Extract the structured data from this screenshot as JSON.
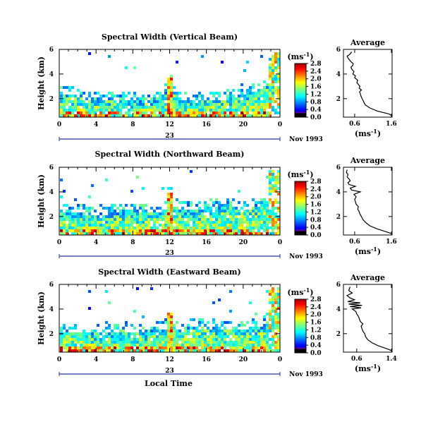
{
  "chart_data": [
    {
      "type": "heatmap",
      "title": "Spectral Width (Vertical Beam)",
      "ylabel": "Height (km)",
      "xlabel": "",
      "x_ticks": [
        "0",
        "4",
        "8",
        "12",
        "16",
        "20",
        "0"
      ],
      "y_ticks": [
        "2",
        "4",
        "6"
      ],
      "xlim": [
        0,
        24
      ],
      "ylim": [
        0.5,
        6.0
      ],
      "day_label": "23",
      "date_label": "Nov 1993",
      "colorbar": {
        "unit": "(ms",
        "unit_exp": "-1",
        "unit_close": ")",
        "ticks": [
          "0.0",
          "0.4",
          "0.8",
          "1.2",
          "1.6",
          "2.0",
          "2.4",
          "2.8"
        ]
      },
      "boundary_layer_top_km": [
        2.4,
        2.5,
        2.2,
        2.0,
        1.9,
        2.0,
        2.0,
        2.1,
        1.9,
        1.8,
        1.9,
        2.0,
        2.9,
        2.0,
        1.8,
        1.9,
        2.0,
        2.0,
        2.1,
        2.2,
        2.3,
        2.6,
        3.0,
        4.0,
        5.5
      ]
    },
    {
      "type": "heatmap",
      "title": "Spectral Width (Northward Beam)",
      "ylabel": "Height (km)",
      "xlabel": "",
      "x_ticks": [
        "0",
        "4",
        "8",
        "12",
        "16",
        "20",
        "0"
      ],
      "y_ticks": [
        "2",
        "4",
        "6"
      ],
      "xlim": [
        0,
        24
      ],
      "ylim": [
        0.5,
        6.0
      ],
      "day_label": "23",
      "date_label": "Nov 1993",
      "colorbar": {
        "unit": "(ms",
        "unit_exp": "-1",
        "unit_close": ")",
        "ticks": [
          "0.0",
          "0.4",
          "0.8",
          "1.2",
          "1.6",
          "2.0",
          "2.4",
          "2.8"
        ]
      },
      "boundary_layer_top_km": [
        2.5,
        2.4,
        2.4,
        2.3,
        2.2,
        2.3,
        2.4,
        2.4,
        2.5,
        2.4,
        2.4,
        2.5,
        3.0,
        2.7,
        2.7,
        2.6,
        2.8,
        2.9,
        3.0,
        2.8,
        2.7,
        2.8,
        3.0,
        3.8,
        5.5
      ]
    },
    {
      "type": "heatmap",
      "title": "Spectral Width (Eastward Beam)",
      "ylabel": "Height (km)",
      "xlabel": "Local Time",
      "x_ticks": [
        "0",
        "4",
        "8",
        "12",
        "16",
        "20",
        "0"
      ],
      "y_ticks": [
        "2",
        "4",
        "6"
      ],
      "xlim": [
        0,
        24
      ],
      "ylim": [
        0.5,
        6.0
      ],
      "day_label": "23",
      "date_label": "Nov 1993",
      "colorbar": {
        "unit": "(ms",
        "unit_exp": "-1",
        "unit_close": ")",
        "ticks": [
          "0.0",
          "0.4",
          "0.8",
          "1.2",
          "1.6",
          "2.0",
          "2.4",
          "2.8"
        ]
      },
      "boundary_layer_top_km": [
        2.2,
        2.3,
        2.1,
        2.2,
        2.1,
        2.2,
        2.3,
        2.4,
        2.2,
        2.1,
        2.3,
        2.4,
        2.8,
        2.4,
        2.6,
        2.7,
        2.5,
        2.6,
        2.5,
        2.5,
        2.4,
        2.6,
        2.8,
        3.6,
        5.5
      ]
    },
    {
      "type": "line",
      "title": "Average",
      "xlabel": "(ms",
      "xlabel_exp": "-1",
      "xlabel_close": ")",
      "x_ticks": [
        "0.6",
        "1.6"
      ],
      "y_ticks": [
        "2",
        "4",
        "6"
      ],
      "xlim": [
        0.3,
        1.6
      ],
      "ylim": [
        0.5,
        6.0
      ],
      "x": [
        1.6,
        1.52,
        1.2,
        1.0,
        0.88,
        0.84,
        0.8,
        0.77,
        0.75,
        0.73,
        0.78,
        0.72,
        0.74,
        0.7,
        0.66,
        0.68,
        0.6,
        0.62,
        0.55,
        0.58,
        0.52,
        0.5,
        0.55,
        0.56,
        0.5,
        0.46,
        0.42,
        0.4,
        0.47,
        0.52
      ],
      "y": [
        0.6,
        0.75,
        1.0,
        1.25,
        1.5,
        1.75,
        2.0,
        2.2,
        2.4,
        2.55,
        2.7,
        2.85,
        3.0,
        3.15,
        3.3,
        3.5,
        3.7,
        3.85,
        4.0,
        4.2,
        4.4,
        4.55,
        4.7,
        4.85,
        5.0,
        5.15,
        5.3,
        5.45,
        5.6,
        5.8
      ]
    },
    {
      "type": "line",
      "title": "Average",
      "xlabel": "(ms",
      "xlabel_exp": "-1",
      "xlabel_close": ")",
      "x_ticks": [
        "0.6",
        "1.6"
      ],
      "y_ticks": [
        "2",
        "4",
        "6"
      ],
      "xlim": [
        0.3,
        1.6
      ],
      "ylim": [
        0.5,
        6.0
      ],
      "x": [
        1.6,
        1.45,
        1.2,
        1.0,
        0.9,
        0.82,
        0.78,
        0.74,
        0.72,
        0.68,
        0.7,
        0.64,
        0.62,
        0.6,
        0.64,
        0.58,
        0.75,
        0.52,
        0.48,
        0.62,
        0.45,
        0.42,
        0.48,
        0.45,
        0.4,
        0.42,
        0.38,
        0.4
      ],
      "y": [
        0.6,
        0.75,
        1.0,
        1.25,
        1.5,
        1.75,
        2.0,
        2.2,
        2.4,
        2.6,
        2.8,
        3.0,
        3.2,
        3.4,
        3.6,
        3.8,
        4.0,
        4.15,
        4.3,
        4.45,
        4.6,
        4.75,
        4.9,
        5.05,
        5.2,
        5.4,
        5.6,
        5.8
      ]
    },
    {
      "type": "line",
      "title": "Average",
      "xlabel": "(ms",
      "xlabel_exp": "-1",
      "xlabel_close": ")",
      "x_ticks": [
        "0.6",
        "1.4"
      ],
      "y_ticks": [
        "2",
        "4",
        "6"
      ],
      "xlim": [
        0.3,
        1.4
      ],
      "ylim": [
        0.5,
        6.0
      ],
      "x": [
        1.4,
        1.3,
        1.1,
        0.95,
        0.85,
        0.8,
        0.78,
        0.74,
        0.72,
        0.7,
        0.74,
        0.68,
        0.66,
        0.64,
        0.6,
        0.58,
        0.5,
        0.7,
        0.45,
        0.72,
        0.42,
        0.68,
        0.4,
        0.55,
        0.45,
        0.38,
        0.5,
        0.42,
        0.45
      ],
      "y": [
        0.6,
        0.75,
        1.0,
        1.25,
        1.5,
        1.75,
        2.0,
        2.2,
        2.4,
        2.6,
        2.8,
        3.0,
        3.2,
        3.4,
        3.6,
        3.8,
        4.0,
        4.1,
        4.2,
        4.3,
        4.4,
        4.5,
        4.6,
        4.75,
        4.9,
        5.1,
        5.3,
        5.5,
        5.8
      ]
    }
  ]
}
